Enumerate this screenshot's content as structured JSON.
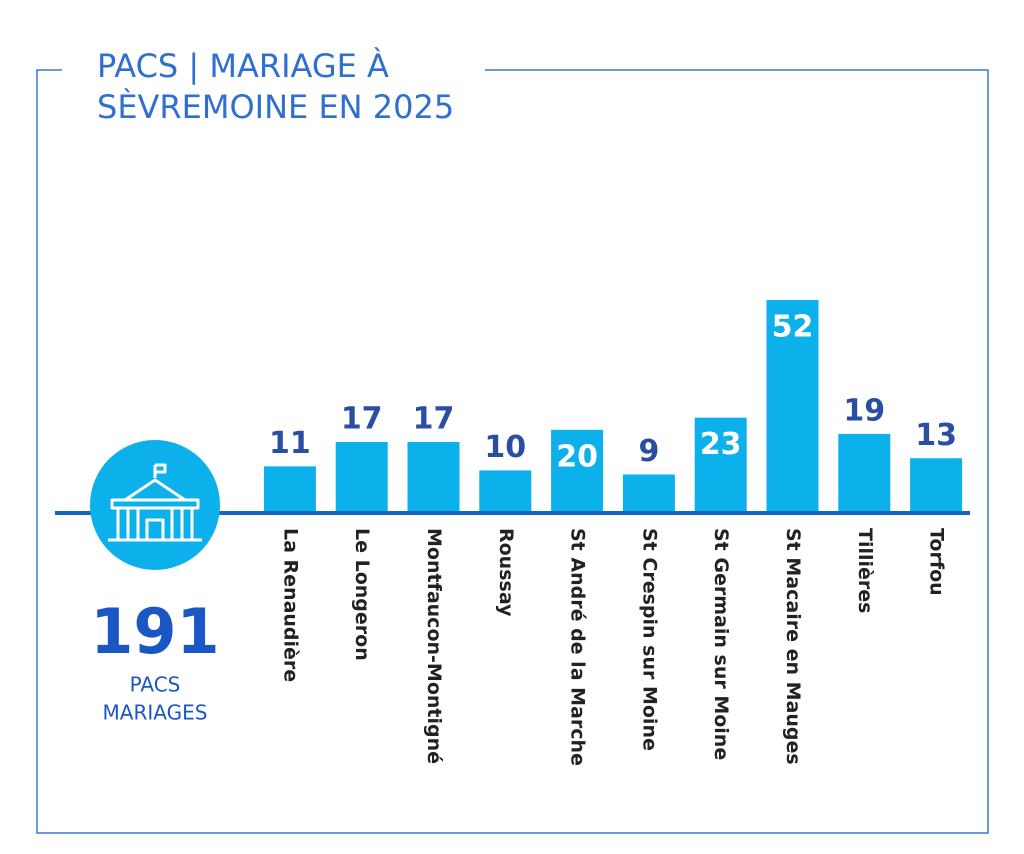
{
  "chart_data": {
    "type": "bar",
    "title_lines": [
      "PACS | MARIAGE À",
      "SÈVREMOINE EN 2025"
    ],
    "categories": [
      "La Renaudière",
      "Le Longeron",
      "Montfaucon-Montigné",
      "Roussay",
      "St André de la Marche",
      "St Crespin sur Moine",
      "St Germain sur Moine",
      "St Macaire en Mauges",
      "Tillières",
      "Torfou"
    ],
    "values": [
      11,
      17,
      17,
      10,
      20,
      9,
      23,
      52,
      19,
      13
    ],
    "color": "#0cb0ea",
    "total": {
      "value": 191,
      "lines": [
        "PACS",
        "MARIAGES"
      ]
    }
  }
}
